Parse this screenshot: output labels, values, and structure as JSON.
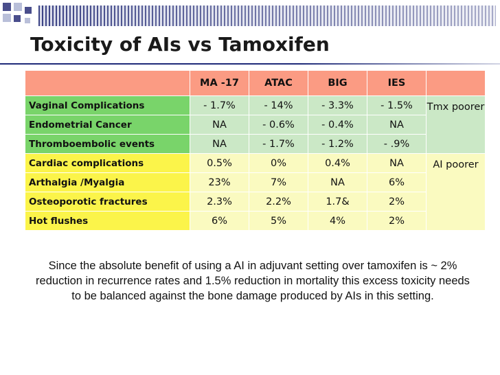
{
  "slide": {
    "title": "Toxicity of AIs vs Tamoxifen",
    "summary": "Since the absolute benefit of using a AI in adjuvant setting over tamoxifen is  ~ 2% reduction in recurrence rates and 1.5% reduction in mortality this excess toxicity needs to be balanced against the bone damage produced by AIs in this setting."
  },
  "table": {
    "headers": [
      "",
      "MA -17",
      "ATAC",
      "BIG",
      "IES",
      ""
    ],
    "rows": [
      {
        "label": "Vaginal Complications",
        "values": [
          "- 1.7%",
          "- 14%",
          "- 3.3%",
          "- 1.5%"
        ]
      },
      {
        "label": "Endometrial Cancer",
        "values": [
          "NA",
          "- 0.6%",
          "- 0.4%",
          "NA"
        ]
      },
      {
        "label": "Thromboembolic events",
        "values": [
          "NA",
          "- 1.7%",
          "- 1.2%",
          "- .9%"
        ]
      },
      {
        "label": "Cardiac complications",
        "values": [
          "0.5%",
          "0%",
          "0.4%",
          "NA"
        ]
      },
      {
        "label": "Arthalgia /Myalgia",
        "values": [
          "23%",
          "7%",
          "NA",
          "6%"
        ]
      },
      {
        "label": "Osteoporotic fractures",
        "values": [
          "2.3%",
          "2.2%",
          "1.7&",
          "2%"
        ]
      },
      {
        "label": "Hot flushes",
        "values": [
          "6%",
          "5%",
          "4%",
          "2%"
        ]
      }
    ],
    "group_notes": [
      "Tmx poorer",
      "AI poorer"
    ]
  },
  "colors": {
    "header_bg": "#fb9b83",
    "tmx_label_bg": "#79d46a",
    "tmx_cell_bg": "#cbe8c6",
    "ai_label_bg": "#fbf44a",
    "ai_cell_bg": "#fafac0"
  }
}
